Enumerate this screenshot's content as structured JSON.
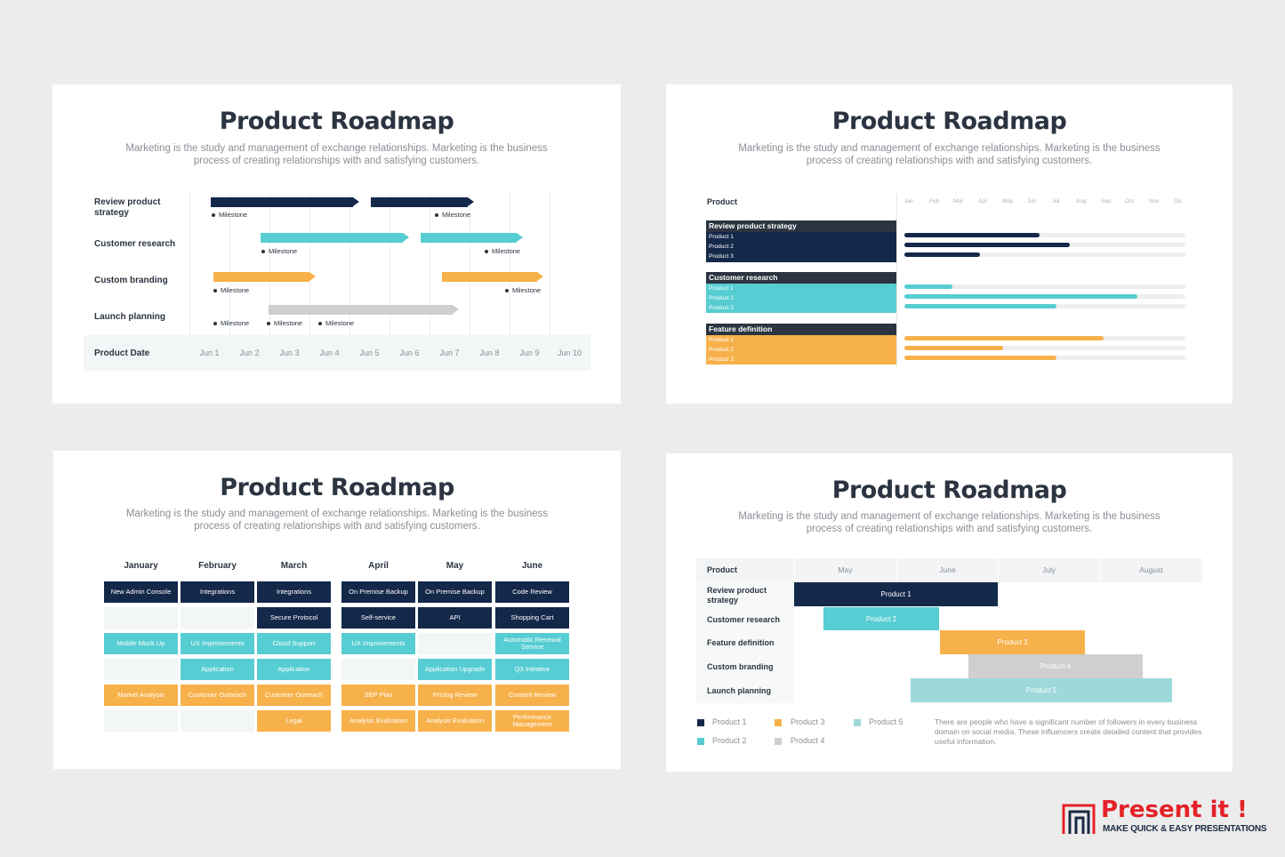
{
  "title": "Product Roadmap",
  "subtitle": "Marketing is the study and management of exchange relationships. Marketing is the business process of creating relationships with and satisfying customers.",
  "colors": {
    "navy": "#14284a",
    "teal": "#56cdd3",
    "orange": "#f7b14b",
    "gray": "#cfcfcf",
    "light_teal": "#9ed8da"
  },
  "slide1": {
    "rows": [
      "Review product strategy",
      "Customer research",
      "Custom branding",
      "Launch planning"
    ],
    "footer_label": "Product Date",
    "dates": [
      "Jun 1",
      "Jun 2",
      "Jun 3",
      "Jun 4",
      "Jun 5",
      "Jun 6",
      "Jun 7",
      "Jun 8",
      "Jun 9",
      "Jun 10"
    ],
    "milestone": "Milestone"
  },
  "slide2": {
    "header": "Product",
    "months": [
      "Jan",
      "Feb",
      "Mar",
      "Apr",
      "May",
      "Jun",
      "Jul",
      "Aug",
      "Sep",
      "Oct",
      "Nov",
      "Dic"
    ],
    "sections": [
      {
        "name": "Review product strategy",
        "items": [
          "Product 1",
          "Product 2",
          "Product 3"
        ],
        "progress": [
          0.48,
          0.59,
          0.27
        ]
      },
      {
        "name": "Customer research",
        "items": [
          "Product 1",
          "Product 2",
          "Product 3"
        ],
        "progress": [
          0.17,
          0.83,
          0.54
        ]
      },
      {
        "name": "Feature definition",
        "items": [
          "Product 1",
          "Product 2",
          "Product 3"
        ],
        "progress": [
          0.71,
          0.35,
          0.54
        ]
      }
    ]
  },
  "slide3": {
    "months": [
      "January",
      "February",
      "March",
      "April",
      "May",
      "June"
    ],
    "cells": {
      "c1": "New Admin Console",
      "c2": "Integrations",
      "c3": "Integrations",
      "c4": "On Premise Backup",
      "c5": "On Premise Backup",
      "c6": "Code Review",
      "c7": "Secure Protocol",
      "c8": "Self-service",
      "c9": "API",
      "c10": "Shopping Cart",
      "c11": "Mobile Mock Up",
      "c12": "UX Improvements",
      "c13": "Cloud Support",
      "c14": "UX Improvements",
      "c15": "Automatic Renewal Service",
      "c16": "Application",
      "c17": "Application",
      "c18": "Application Upgrade",
      "c19": "Q3 Initiative",
      "c20": "Market Analysis",
      "c21": "Customer Outreach",
      "c22": "Customer Outreach",
      "c23": "SEP Plan",
      "c24": "Pricing Review",
      "c25": "Content Review",
      "c26": "Legal",
      "c27": "Analysis Evaluation",
      "c28": "Analysis Evaluation",
      "c29": "Performance Management"
    }
  },
  "slide4": {
    "header": "Product",
    "months": [
      "May",
      "June",
      "July",
      "August"
    ],
    "rows": [
      "Review product strategy",
      "Customer research",
      "Feature definition",
      "Custom branding",
      "Launch planning"
    ],
    "bars": [
      "Product 1",
      "Product 2",
      "Product 3",
      "Product 4",
      "Product 5"
    ],
    "legend": [
      "Product 1",
      "Product 2",
      "Product 3",
      "Product 4",
      "Product 5"
    ],
    "note": "There are people who have a significant number of followers in every business domain on social media. These influencers create detailed content that provides useful information."
  },
  "brand": {
    "name": "Present it !",
    "tagline": "MAKE QUICK & EASY PRESENTATIONS"
  }
}
